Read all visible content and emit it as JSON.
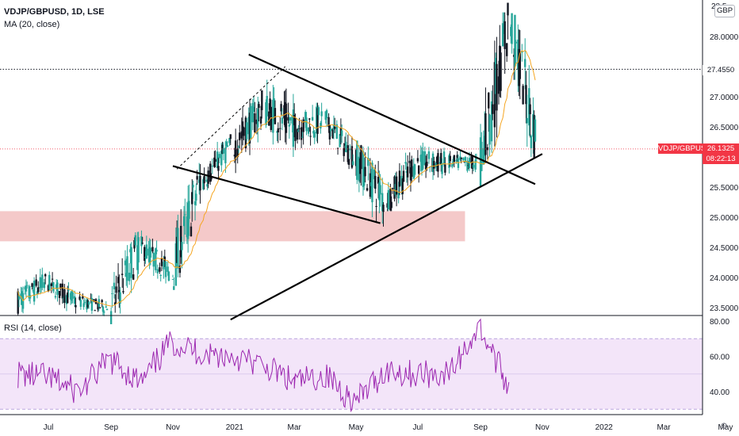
{
  "header": {
    "symbol_line": "VDJP/GBPUSD, 1D, LSE",
    "ma_line": "MA (20, close)",
    "rsi_line": "RSI (14, close)"
  },
  "currency_badge": "GBP",
  "price_axis": {
    "top_partial": "28.5",
    "ticks": [
      "28.0000",
      "27.0000",
      "26.5000",
      "25.5000",
      "25.0000",
      "24.5000",
      "24.0000",
      "23.5000"
    ],
    "marked_level_label": "27.4550",
    "current_symbol": "VDJP/GBPUSD",
    "current_price": "26.1325",
    "countdown": "08:22:13"
  },
  "rsi_axis": {
    "ticks": [
      "80.00",
      "60.00",
      "40.00"
    ]
  },
  "time_axis": {
    "ticks": [
      "Jul",
      "Sep",
      "Nov",
      "2021",
      "Mar",
      "May",
      "Jul",
      "Sep",
      "Nov",
      "2022",
      "Mar",
      "May"
    ]
  },
  "colors": {
    "up": "#131722",
    "down": "#26a69a",
    "ma": "#f5a623",
    "rsi": "#9c27b0",
    "rsi_band": "#f3e5f9",
    "zone": "#f2c0c0",
    "price_tag": "#f23645"
  },
  "chart_data": {
    "type": "candlestick",
    "timeframe": "1D",
    "price_range": [
      23.3,
      28.6
    ],
    "rsi_range": [
      27,
      82
    ],
    "marked_level": 27.455,
    "current_price": 26.1325,
    "support_zone": {
      "from": 24.6,
      "to": 25.1,
      "start": "2020-06",
      "end": "2021-08"
    },
    "ohlc_monthly": [
      {
        "t": "2020-06",
        "o": 23.6,
        "h": 24.2,
        "l": 23.3,
        "c": 23.9
      },
      {
        "t": "2020-07",
        "o": 23.9,
        "h": 24.1,
        "l": 23.4,
        "c": 23.6
      },
      {
        "t": "2020-08",
        "o": 23.6,
        "h": 23.8,
        "l": 23.3,
        "c": 23.5
      },
      {
        "t": "2020-09",
        "o": 23.5,
        "h": 24.9,
        "l": 23.4,
        "c": 24.5
      },
      {
        "t": "2020-10",
        "o": 24.5,
        "h": 24.8,
        "l": 23.9,
        "c": 24.1
      },
      {
        "t": "2020-11",
        "o": 24.1,
        "h": 25.9,
        "l": 24.0,
        "c": 25.6
      },
      {
        "t": "2020-12",
        "o": 25.6,
        "h": 26.3,
        "l": 25.4,
        "c": 26.2
      },
      {
        "t": "2021-01",
        "o": 26.2,
        "h": 27.0,
        "l": 25.6,
        "c": 26.8
      },
      {
        "t": "2021-02",
        "o": 26.8,
        "h": 27.5,
        "l": 26.0,
        "c": 26.5
      },
      {
        "t": "2021-03",
        "o": 26.5,
        "h": 26.9,
        "l": 25.7,
        "c": 26.6
      },
      {
        "t": "2021-04",
        "o": 26.6,
        "h": 26.8,
        "l": 25.8,
        "c": 26.0
      },
      {
        "t": "2021-05",
        "o": 26.0,
        "h": 26.2,
        "l": 24.6,
        "c": 25.3
      },
      {
        "t": "2021-06",
        "o": 25.3,
        "h": 26.2,
        "l": 25.1,
        "c": 25.9
      },
      {
        "t": "2021-07",
        "o": 25.9,
        "h": 26.4,
        "l": 25.5,
        "c": 25.9
      },
      {
        "t": "2021-08",
        "o": 25.9,
        "h": 26.1,
        "l": 25.5,
        "c": 25.9
      },
      {
        "t": "2021-09",
        "o": 25.9,
        "h": 28.4,
        "l": 25.9,
        "c": 28.2
      },
      {
        "t": "2021-10",
        "o": 28.2,
        "h": 28.2,
        "l": 26.0,
        "c": 26.1
      }
    ],
    "ma20_monthly": [
      {
        "t": "2020-06",
        "v": 23.7
      },
      {
        "t": "2020-07",
        "v": 23.8
      },
      {
        "t": "2020-08",
        "v": 23.6
      },
      {
        "t": "2020-09",
        "v": 23.9
      },
      {
        "t": "2020-10",
        "v": 24.3
      },
      {
        "t": "2020-11",
        "v": 24.8
      },
      {
        "t": "2020-12",
        "v": 25.7
      },
      {
        "t": "2021-01",
        "v": 26.3
      },
      {
        "t": "2021-02",
        "v": 26.6
      },
      {
        "t": "2021-03",
        "v": 26.5
      },
      {
        "t": "2021-04",
        "v": 26.5
      },
      {
        "t": "2021-05",
        "v": 25.8
      },
      {
        "t": "2021-06",
        "v": 25.6
      },
      {
        "t": "2021-07",
        "v": 25.9
      },
      {
        "t": "2021-08",
        "v": 25.9
      },
      {
        "t": "2021-09",
        "v": 27.0
      },
      {
        "t": "2021-10",
        "v": 27.0
      }
    ],
    "rsi_band": [
      30,
      70
    ],
    "rsi_monthly": [
      {
        "t": "2020-06",
        "v": 50
      },
      {
        "t": "2020-07",
        "v": 48
      },
      {
        "t": "2020-08",
        "v": 40
      },
      {
        "t": "2020-09",
        "v": 58
      },
      {
        "t": "2020-10",
        "v": 45
      },
      {
        "t": "2020-11",
        "v": 68
      },
      {
        "t": "2020-12",
        "v": 62
      },
      {
        "t": "2021-01",
        "v": 60
      },
      {
        "t": "2021-02",
        "v": 54
      },
      {
        "t": "2021-03",
        "v": 45
      },
      {
        "t": "2021-04",
        "v": 49
      },
      {
        "t": "2021-05",
        "v": 34
      },
      {
        "t": "2021-06",
        "v": 52
      },
      {
        "t": "2021-07",
        "v": 50
      },
      {
        "t": "2021-08",
        "v": 50
      },
      {
        "t": "2021-09",
        "v": 76
      },
      {
        "t": "2021-10",
        "v": 42
      }
    ],
    "trendlines": [
      {
        "name": "upper-resistance",
        "from": [
          "2021-01-15",
          27.7
        ],
        "to": [
          "2021-10-25",
          25.55
        ]
      },
      {
        "name": "lower-support",
        "from": [
          "2020-11-01",
          25.85
        ],
        "to": [
          "2021-05-25",
          24.9
        ]
      },
      {
        "name": "rising-support",
        "from": [
          "2020-12-28",
          23.3
        ],
        "to": [
          "2021-11-01",
          26.05
        ]
      },
      {
        "name": "dashed-channel",
        "from": [
          "2020-11-05",
          25.8
        ],
        "to": [
          "2021-02-20",
          27.5
        ]
      }
    ]
  }
}
